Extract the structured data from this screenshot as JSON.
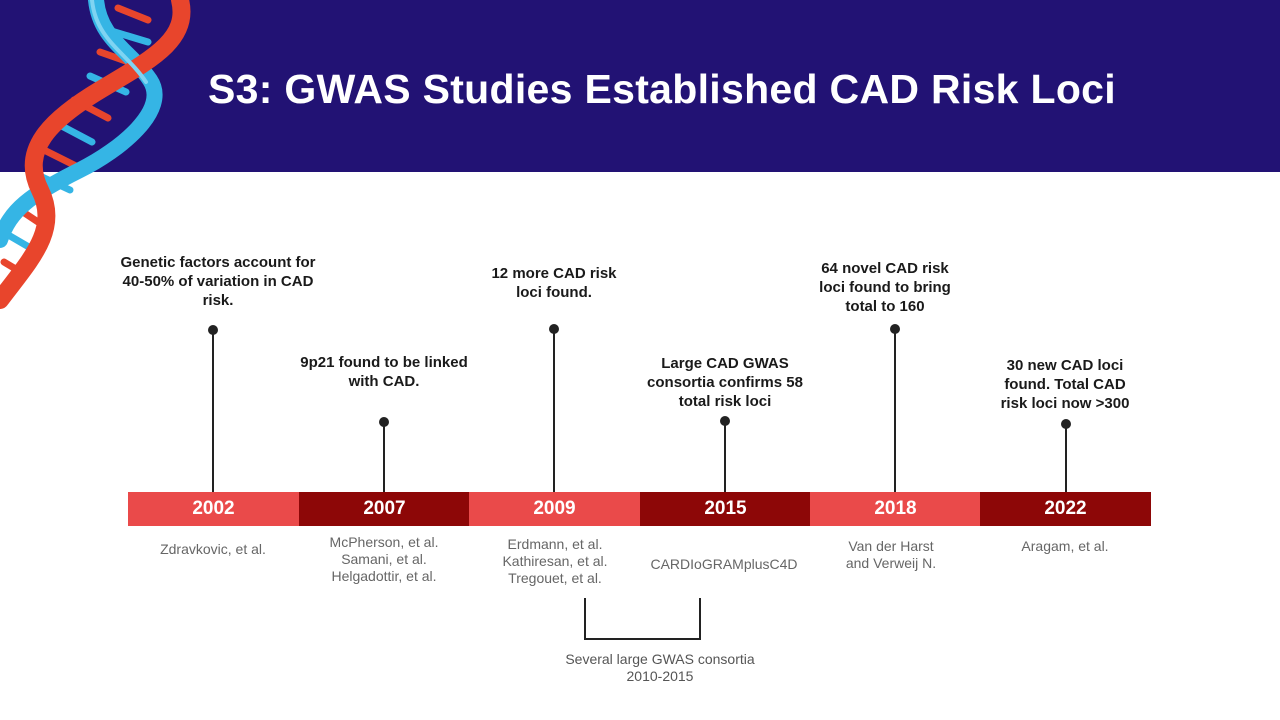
{
  "slide": {
    "title": "S3: GWAS Studies Established CAD Risk Loci"
  },
  "timeline": [
    {
      "year": "2002",
      "event": "Genetic factors account for 40-50% of variation in CAD risk.",
      "refs": [
        "Zdravkovic, et al."
      ]
    },
    {
      "year": "2007",
      "event": "9p21 found to be linked with CAD.",
      "refs": [
        "McPherson, et al.",
        "Samani, et al.",
        "Helgadottir, et al."
      ]
    },
    {
      "year": "2009",
      "event": "12 more CAD risk loci found.",
      "refs": [
        "Erdmann, et al.",
        "Kathiresan, et al.",
        "Tregouet, et al."
      ]
    },
    {
      "year": "2015",
      "event": "Large CAD GWAS consortia confirms 58 total risk loci",
      "refs": [
        "CARDIoGRAMplusC4D"
      ]
    },
    {
      "year": "2018",
      "event": "64 novel CAD risk loci found to bring total to 160",
      "refs": [
        "Van der Harst",
        "and Verweij N."
      ]
    },
    {
      "year": "2022",
      "event": "30 new CAD loci found. Total CAD risk loci now >300",
      "refs": [
        "Aragam, et al."
      ]
    }
  ],
  "bracket_note": {
    "line1": "Several large GWAS consortia",
    "line2": "2010-2015"
  },
  "colors": {
    "header_bg": "#221274",
    "segment_light": "#ea4a4a",
    "segment_dark": "#8d0707",
    "dna_red": "#e8452c",
    "dna_blue": "#35b5e5"
  }
}
